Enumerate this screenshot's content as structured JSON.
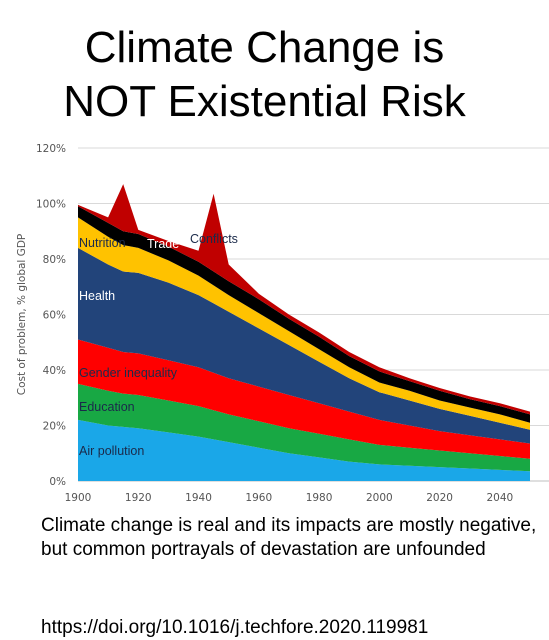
{
  "title_lines": [
    "Climate Change is",
    "NOT Existential Risk"
  ],
  "caption": "Climate change is real and its impacts are mostly negative, but common portrayals of devastation are unfounded",
  "doi": "https://doi.org/10.1016/j.techfore.2020.119981",
  "chart_data": {
    "type": "area",
    "stacked": true,
    "x": [
      1900,
      1910,
      1915,
      1920,
      1930,
      1940,
      1945,
      1950,
      1960,
      1970,
      1980,
      1990,
      2000,
      2010,
      2020,
      2030,
      2040,
      2050
    ],
    "ylabel": "Cost of problem, % global GDP",
    "ylim": [
      0,
      120
    ],
    "xlim": [
      1900,
      2050
    ],
    "y_ticks": [
      "0%",
      "20%",
      "40%",
      "60%",
      "80%",
      "100%",
      "120%"
    ],
    "y_tick_values": [
      0,
      20,
      40,
      60,
      80,
      100,
      120
    ],
    "x_ticks": [
      "1900",
      "1920",
      "1940",
      "1960",
      "1980",
      "2000",
      "2020",
      "2040"
    ],
    "x_tick_values": [
      1900,
      1920,
      1940,
      1960,
      1980,
      2000,
      2020,
      2040
    ],
    "grid": true,
    "series": [
      {
        "name": "Air pollution",
        "color": "#1aa7e8",
        "values": [
          22,
          20,
          19.5,
          19,
          17.5,
          16,
          15,
          14,
          12,
          10,
          8.5,
          7,
          6,
          5.5,
          5,
          4.5,
          4,
          3.5
        ]
      },
      {
        "name": "Education",
        "color": "#18a844",
        "values": [
          13,
          12.5,
          12,
          12,
          11.5,
          11,
          10.5,
          10,
          9.5,
          9,
          8.5,
          8,
          7,
          6.5,
          6,
          5.5,
          5,
          4.5
        ]
      },
      {
        "name": "Gender inequality",
        "color": "#ff0000",
        "values": [
          16,
          15.5,
          15,
          15,
          14.5,
          14,
          13.5,
          13,
          12.5,
          12,
          11,
          10,
          9,
          8,
          7,
          6.5,
          6,
          5.5
        ]
      },
      {
        "name": "Health",
        "color": "#22447a",
        "values": [
          33,
          30,
          29,
          29,
          28,
          26,
          25,
          24,
          21,
          18,
          15,
          12,
          10,
          9,
          8,
          7,
          6,
          5
        ]
      },
      {
        "name": "Nutrition",
        "color": "#ffc200",
        "values": [
          11,
          10,
          9.5,
          9,
          8,
          7,
          6.5,
          6,
          5.5,
          5,
          4.5,
          4,
          3.5,
          3.5,
          3,
          3,
          3,
          2.5
        ]
      },
      {
        "name": "Trade",
        "color": "#000000",
        "values": [
          4,
          5,
          5,
          5,
          5,
          5,
          5,
          5,
          5,
          4.5,
          4.5,
          4,
          4,
          3.5,
          3.5,
          3,
          3,
          3
        ]
      },
      {
        "name": "Conflicts",
        "color": "#c00000",
        "values": [
          0.5,
          2,
          17,
          1.5,
          2,
          4,
          28,
          6,
          2,
          1.5,
          1.5,
          1.5,
          1.5,
          1,
          1,
          1,
          1,
          1
        ]
      }
    ]
  }
}
